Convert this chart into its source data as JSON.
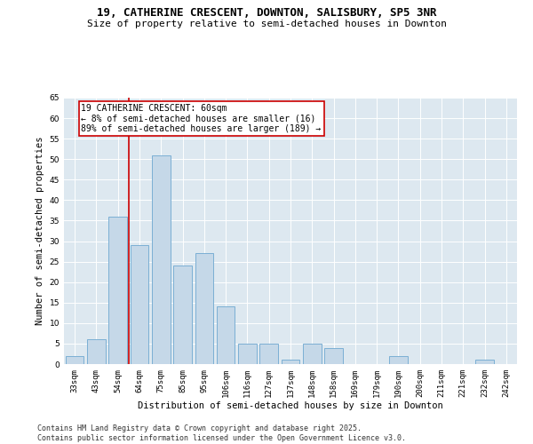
{
  "title1": "19, CATHERINE CRESCENT, DOWNTON, SALISBURY, SP5 3NR",
  "title2": "Size of property relative to semi-detached houses in Downton",
  "xlabel": "Distribution of semi-detached houses by size in Downton",
  "ylabel": "Number of semi-detached properties",
  "categories": [
    "33sqm",
    "43sqm",
    "54sqm",
    "64sqm",
    "75sqm",
    "85sqm",
    "95sqm",
    "106sqm",
    "116sqm",
    "127sqm",
    "137sqm",
    "148sqm",
    "158sqm",
    "169sqm",
    "179sqm",
    "190sqm",
    "200sqm",
    "211sqm",
    "221sqm",
    "232sqm",
    "242sqm"
  ],
  "values": [
    2,
    6,
    36,
    29,
    51,
    24,
    27,
    14,
    5,
    5,
    1,
    5,
    4,
    0,
    0,
    2,
    0,
    0,
    0,
    1,
    0
  ],
  "bar_color": "#c5d8e8",
  "bar_edge_color": "#7bafd4",
  "vline_x": 2.5,
  "vline_color": "#cc0000",
  "annotation_line1": "19 CATHERINE CRESCENT: 60sqm",
  "annotation_line2": "← 8% of semi-detached houses are smaller (16)",
  "annotation_line3": "89% of semi-detached houses are larger (189) →",
  "annotation_box_color": "#cc0000",
  "ylim": [
    0,
    65
  ],
  "yticks": [
    0,
    5,
    10,
    15,
    20,
    25,
    30,
    35,
    40,
    45,
    50,
    55,
    60,
    65
  ],
  "bg_color": "#dde8f0",
  "footer1": "Contains HM Land Registry data © Crown copyright and database right 2025.",
  "footer2": "Contains public sector information licensed under the Open Government Licence v3.0.",
  "title1_fontsize": 9,
  "title2_fontsize": 8,
  "axis_label_fontsize": 7.5,
  "tick_fontsize": 6.5,
  "annotation_fontsize": 7,
  "footer_fontsize": 6
}
